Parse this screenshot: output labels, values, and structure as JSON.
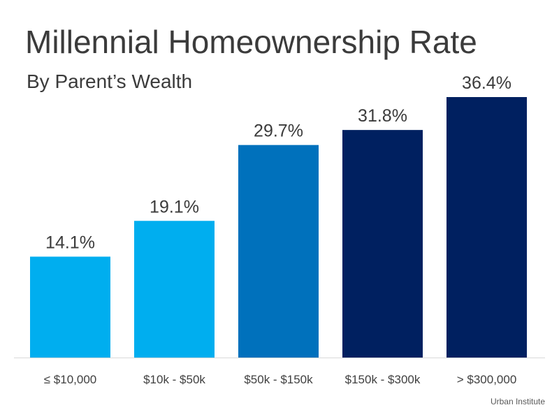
{
  "chart_data": {
    "type": "bar",
    "title": "Millennial Homeownership Rate",
    "subtitle": "By Parent’s Wealth",
    "categories": [
      "≤ $10,000",
      "$10k - $50k",
      "$50k - $150k",
      "$150k - $300k",
      "> $300,000"
    ],
    "values": [
      14.1,
      19.1,
      29.7,
      31.8,
      36.4
    ],
    "value_labels": [
      "14.1%",
      "19.1%",
      "29.7%",
      "31.8%",
      "36.4%"
    ],
    "bar_colors": [
      "#00aeef",
      "#00aeef",
      "#0071bc",
      "#002060",
      "#002060"
    ],
    "ylim": [
      0,
      36.4
    ],
    "grid": false,
    "legend": "none"
  },
  "source": "Urban Institute"
}
